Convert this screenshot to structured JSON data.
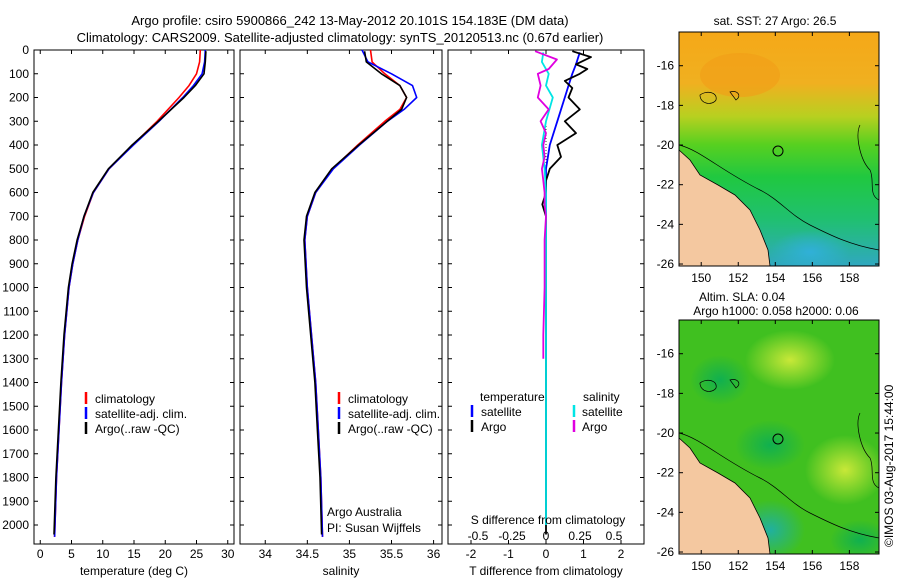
{
  "title_line1": "Argo profile: csiro 5900866_242 13-May-2012 20.101S 154.183E (DM data)",
  "title_line2": "Climatology: CARS2009. Satellite-adjusted climatology: synTS_20120513.nc (0.67d earlier)",
  "colors": {
    "climatology": "#ff0000",
    "satellite": "#0000ff",
    "argo": "#000000",
    "sat_salinity": "#00e5e5",
    "argo_salinity": "#e000e0",
    "land": "#f4c8a0"
  },
  "chart_data": [
    {
      "type": "line",
      "id": "temperature",
      "xlabel": "temperature (deg C)",
      "ylabel": "",
      "xlim": [
        -1,
        31
      ],
      "ylim": [
        2080,
        0
      ],
      "x_ticks": [
        "0",
        "5",
        "10",
        "15",
        "20",
        "25",
        "30"
      ],
      "y_ticks": [
        "0",
        "100",
        "200",
        "300",
        "400",
        "500",
        "600",
        "700",
        "800",
        "900",
        "1000",
        "1100",
        "1200",
        "1300",
        "1400",
        "1500",
        "1600",
        "1700",
        "1800",
        "1900",
        "2000"
      ],
      "legend": [
        "climatology",
        "satellite-adj. clim.",
        "Argo(..raw -QC)"
      ],
      "series": [
        {
          "name": "climatology",
          "depth": [
            0,
            50,
            100,
            150,
            200,
            300,
            400,
            500,
            600,
            700,
            800,
            900,
            1000,
            1200,
            1400,
            1600,
            1800,
            2050
          ],
          "values": [
            25.6,
            25.5,
            25.0,
            23.8,
            22.2,
            18.7,
            14.8,
            11.0,
            8.5,
            7.1,
            6.0,
            5.2,
            4.6,
            3.9,
            3.4,
            3.0,
            2.6,
            2.3
          ]
        },
        {
          "name": "satellite-adj. clim.",
          "depth": [
            0,
            50,
            100,
            150,
            200,
            300,
            400,
            500,
            600,
            700,
            800,
            900,
            1000,
            1200,
            1400,
            1600,
            1800,
            2050
          ],
          "values": [
            26.4,
            26.3,
            25.9,
            24.5,
            22.8,
            19.0,
            14.9,
            11.0,
            8.5,
            7.0,
            6.0,
            5.2,
            4.6,
            3.9,
            3.4,
            3.0,
            2.6,
            2.3
          ]
        },
        {
          "name": "Argo(..raw -QC)",
          "depth": [
            5,
            50,
            100,
            150,
            200,
            300,
            400,
            500,
            600,
            700,
            800,
            900,
            1000,
            1200,
            1400,
            1600,
            1800,
            2040
          ],
          "values": [
            26.5,
            26.4,
            26.2,
            24.8,
            23.0,
            18.9,
            14.7,
            10.9,
            8.4,
            7.0,
            5.9,
            5.1,
            4.5,
            3.8,
            3.3,
            2.9,
            2.5,
            2.2
          ]
        }
      ]
    },
    {
      "type": "line",
      "id": "salinity",
      "xlabel": "salinity",
      "xlim": [
        33.7,
        36.1
      ],
      "ylim": [
        2080,
        0
      ],
      "x_ticks": [
        "34",
        "34.5",
        "35",
        "35.5",
        "36"
      ],
      "legend": [
        "climatology",
        "satellite-adj. clim.",
        "Argo(..raw -QC)"
      ],
      "annotation": [
        "Argo Australia",
        "PI: Susan Wijffels"
      ],
      "series": [
        {
          "name": "climatology",
          "depth": [
            0,
            50,
            100,
            150,
            200,
            250,
            300,
            400,
            500,
            600,
            700,
            800,
            1000,
            1200,
            1400,
            1600,
            1800,
            2050
          ],
          "values": [
            35.25,
            35.27,
            35.42,
            35.6,
            35.68,
            35.6,
            35.42,
            35.1,
            34.8,
            34.6,
            34.5,
            34.47,
            34.5,
            34.55,
            34.6,
            34.63,
            34.66,
            34.68
          ]
        },
        {
          "name": "satellite-adj. clim.",
          "depth": [
            0,
            50,
            100,
            150,
            200,
            250,
            300,
            400,
            500,
            600,
            700,
            800,
            1000,
            1200,
            1400,
            1600,
            1800,
            2050
          ],
          "values": [
            35.15,
            35.22,
            35.5,
            35.75,
            35.8,
            35.65,
            35.45,
            35.12,
            34.81,
            34.6,
            34.5,
            34.47,
            34.5,
            34.55,
            34.6,
            34.63,
            34.66,
            34.68
          ]
        },
        {
          "name": "Argo(..raw -QC)",
          "depth": [
            5,
            50,
            100,
            150,
            200,
            250,
            300,
            400,
            500,
            600,
            700,
            800,
            1000,
            1200,
            1400,
            1600,
            1800,
            2040
          ],
          "values": [
            35.18,
            35.2,
            35.38,
            35.6,
            35.68,
            35.62,
            35.45,
            35.11,
            34.79,
            34.59,
            34.49,
            34.46,
            34.49,
            34.54,
            34.59,
            34.62,
            34.65,
            34.67
          ]
        }
      ]
    },
    {
      "type": "line",
      "id": "differences",
      "xlabel": "T difference from climatology",
      "xlabel_top": "S difference from climatology",
      "xlim": [
        -2.6,
        2.6
      ],
      "ylim": [
        2080,
        0
      ],
      "x_ticks_T": [
        "-2",
        "-1",
        "0",
        "1",
        "2"
      ],
      "x_ticks_S": [
        "-0.5",
        "-0.25",
        "0",
        "0.25",
        "0.5"
      ],
      "legend_temperature": {
        "heading": "temperature",
        "items": [
          "satellite",
          "Argo"
        ]
      },
      "legend_salinity": {
        "heading": "salinity",
        "items": [
          "satellite",
          "Argo"
        ]
      },
      "series": [
        {
          "name": "T satellite",
          "depth": [
            10,
            60,
            100,
            150,
            200,
            300,
            400,
            500,
            600,
            700,
            800,
            1000,
            1200,
            1500,
            2000
          ],
          "values": [
            0.9,
            0.8,
            0.7,
            0.6,
            0.5,
            0.3,
            0.1,
            0.0,
            0.0,
            0.0,
            0.0,
            0.0,
            0.0,
            0.0,
            0.0
          ]
        },
        {
          "name": "T Argo",
          "depth": [
            5,
            30,
            60,
            80,
            100,
            130,
            160,
            200,
            250,
            300,
            350,
            400,
            450,
            500,
            550,
            600,
            650,
            700,
            800,
            900,
            1000,
            1200,
            1500,
            1800,
            2040
          ],
          "values": [
            0.7,
            1.2,
            0.8,
            1.1,
            0.9,
            0.5,
            0.7,
            0.6,
            0.9,
            0.5,
            0.8,
            0.3,
            0.4,
            0.1,
            0.0,
            0.0,
            -0.1,
            0.0,
            0.0,
            0.0,
            0.0,
            0.0,
            0.0,
            0.0,
            0.0
          ]
        },
        {
          "name": "S satellite",
          "depth": [
            10,
            50,
            100,
            150,
            200,
            300,
            400,
            500,
            600,
            700,
            800,
            1000,
            1500,
            2000
          ],
          "values": [
            -0.02,
            -0.03,
            0.02,
            0.0,
            0.05,
            0.0,
            -0.03,
            -0.01,
            0.0,
            0.0,
            0.0,
            0.0,
            0.0,
            0.0
          ]
        },
        {
          "name": "S Argo",
          "depth": [
            5,
            40,
            80,
            100,
            150,
            200,
            250,
            300,
            350,
            400,
            450,
            500,
            550,
            600,
            650,
            700,
            800,
            1000,
            1200,
            1300
          ],
          "values": [
            -0.08,
            0.08,
            0.02,
            -0.06,
            -0.04,
            -0.06,
            0.02,
            -0.04,
            0.0,
            -0.02,
            -0.01,
            -0.03,
            -0.02,
            -0.01,
            -0.01,
            0.0,
            -0.01,
            -0.01,
            -0.02,
            -0.02
          ]
        }
      ]
    },
    {
      "type": "heatmap",
      "id": "sst-map",
      "title": "sat. SST: 27 Argo: 26.5",
      "x_ticks": [
        "150",
        "152",
        "154",
        "156",
        "158"
      ],
      "y_ticks": [
        "-16",
        "-18",
        "-20",
        "-22",
        "-24",
        "-26"
      ],
      "xlim": [
        148.8,
        159.6
      ],
      "ylim": [
        -26.1,
        -14.3
      ],
      "argo_position": {
        "lon": 154.18,
        "lat": -20.1
      }
    },
    {
      "type": "heatmap",
      "id": "sla-map",
      "title_line1": "Altim. SLA: 0.04",
      "title_line2": "Argo h1000: 0.058 h2000: 0.06",
      "x_ticks": [
        "150",
        "152",
        "154",
        "156",
        "158"
      ],
      "y_ticks": [
        "-16",
        "-18",
        "-20",
        "-22",
        "-24",
        "-26"
      ],
      "xlim": [
        148.8,
        159.6
      ],
      "ylim": [
        -26.1,
        -14.3
      ],
      "argo_position": {
        "lon": 154.18,
        "lat": -20.1
      }
    }
  ],
  "credit": "©IMOS 03-Aug-2017 15:44:00"
}
